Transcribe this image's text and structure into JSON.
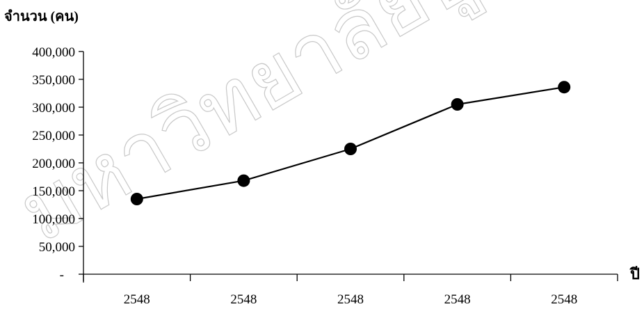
{
  "chart_data": {
    "type": "line",
    "title": "",
    "ylabel": "จำนวน (คน)",
    "xlabel": "ปี",
    "categories": [
      "2548",
      "2548",
      "2548",
      "2548",
      "2548"
    ],
    "values": [
      135000,
      168000,
      225000,
      305000,
      336000
    ],
    "ylim": [
      0,
      400000
    ],
    "yticks": [
      0,
      50000,
      100000,
      150000,
      200000,
      250000,
      300000,
      350000,
      400000
    ],
    "ytick_labels": [
      "-",
      "50,000",
      "100,000",
      "150,000",
      "200,000",
      "250,000",
      "300,000",
      "350,000",
      "400,000"
    ],
    "grid": false,
    "legend": "none",
    "line_color": "#000000",
    "marker_color": "#000000"
  },
  "watermark": {
    "text": "มหาวิทยาลัยบูรพา Burapha University"
  }
}
